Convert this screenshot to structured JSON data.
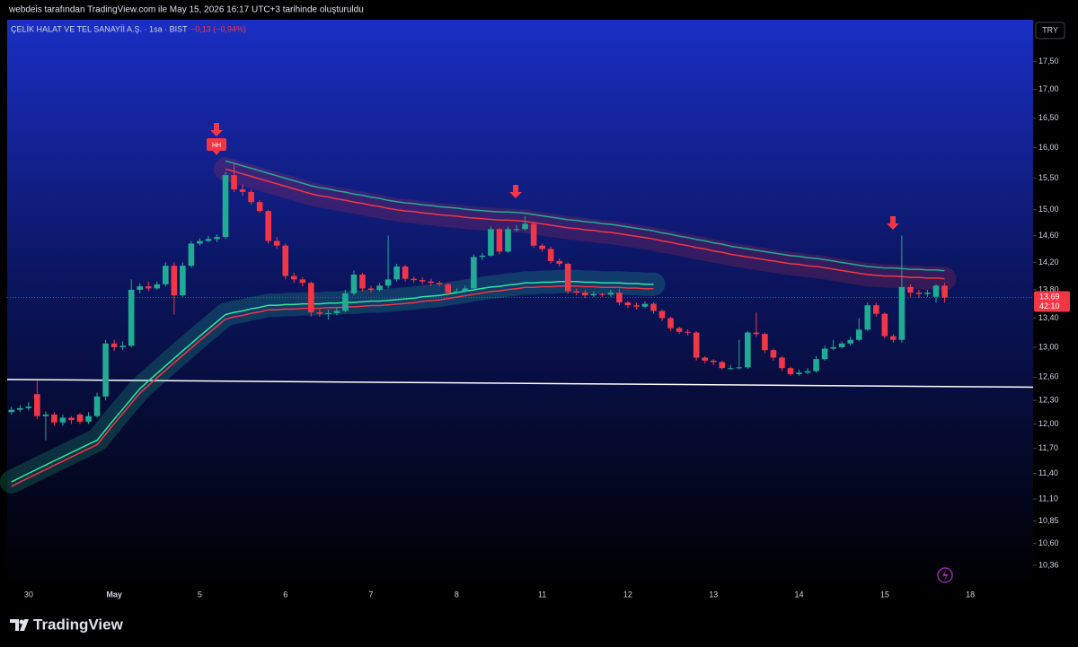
{
  "header": {
    "caption": "webdeis tarafından TradingView.com ile May 15, 2026 16:17 UTC+3 tarihinde oluşturuldu",
    "brand": "TradingView"
  },
  "chart_data": {
    "type": "candlestick",
    "title": "ÇELİK HALAT VE TEL SANAYİİ A.Ş. · 1sa · BIST",
    "subtitle": "−0,13 (−0,94%)",
    "currency": "TRY",
    "log_scale": true,
    "grid": false,
    "up_color": "#22ab94",
    "down_color": "#f23645",
    "ylim": [
      10.12,
      18.28
    ],
    "yticks": [
      {
        "value": 17.5,
        "label": "17,50"
      },
      {
        "value": 17,
        "label": "17,00"
      },
      {
        "value": 16.5,
        "label": "16,50"
      },
      {
        "value": 16,
        "label": "16,00"
      },
      {
        "value": 15.5,
        "label": "15,50"
      },
      {
        "value": 15,
        "label": "15,00"
      },
      {
        "value": 14.6,
        "label": "14,60"
      },
      {
        "value": 14.2,
        "label": "14,20"
      },
      {
        "value": 13.8,
        "label": "13,80"
      },
      {
        "value": 13.4,
        "label": "13,40"
      },
      {
        "value": 13,
        "label": "13,00"
      },
      {
        "value": 12.6,
        "label": "12,60"
      },
      {
        "value": 12.3,
        "label": "12,30"
      },
      {
        "value": 12,
        "label": "12,00"
      },
      {
        "value": 11.7,
        "label": "11,70"
      },
      {
        "value": 11.4,
        "label": "11,40"
      },
      {
        "value": 11.1,
        "label": "11,10"
      },
      {
        "value": 10.85,
        "label": "10,85"
      },
      {
        "value": 10.6,
        "label": "10,60"
      },
      {
        "value": 10.36,
        "label": "10,36"
      }
    ],
    "categories": [
      null,
      null,
      "30",
      null,
      null,
      null,
      null,
      null,
      null,
      null,
      null,
      null,
      "May",
      null,
      null,
      null,
      null,
      null,
      null,
      null,
      null,
      null,
      "5",
      null,
      null,
      null,
      null,
      null,
      null,
      null,
      null,
      null,
      "6",
      null,
      null,
      null,
      null,
      null,
      null,
      null,
      null,
      null,
      "7",
      null,
      null,
      null,
      null,
      null,
      null,
      null,
      null,
      null,
      "8",
      null,
      null,
      null,
      null,
      null,
      null,
      null,
      null,
      null,
      "11",
      null,
      null,
      null,
      null,
      null,
      null,
      null,
      null,
      null,
      "12",
      null,
      null,
      null,
      null,
      null,
      null,
      null,
      null,
      null,
      "13",
      null,
      null,
      null,
      null,
      null,
      null,
      null,
      null,
      null,
      "14",
      null,
      null,
      null,
      null,
      null,
      null,
      null,
      null,
      null,
      "15",
      null,
      null,
      null,
      null,
      null,
      null,
      null,
      null,
      null,
      "18"
    ],
    "values": [
      [
        12.15,
        12.22,
        12.12,
        12.18
      ],
      [
        12.18,
        12.24,
        12.15,
        12.2
      ],
      [
        12.2,
        12.28,
        12.17,
        12.22
      ],
      [
        12.38,
        12.55,
        12.06,
        12.1
      ],
      [
        12.1,
        12.16,
        11.8,
        12.12
      ],
      [
        12.12,
        12.15,
        11.98,
        12.02
      ],
      [
        12.02,
        12.12,
        11.98,
        12.08
      ],
      [
        12.08,
        12.1,
        12.0,
        12.05
      ],
      [
        12.12,
        12.14,
        12.0,
        12.03
      ],
      [
        12.03,
        12.15,
        12.0,
        12.1
      ],
      [
        12.1,
        12.4,
        12.08,
        12.35
      ],
      [
        12.35,
        13.1,
        12.3,
        13.05
      ],
      [
        13.05,
        13.1,
        12.95,
        13.0
      ],
      [
        13.0,
        13.08,
        12.96,
        13.02
      ],
      [
        13.02,
        13.95,
        13.0,
        13.8
      ],
      [
        13.8,
        13.9,
        13.75,
        13.85
      ],
      [
        13.85,
        13.92,
        13.78,
        13.82
      ],
      [
        13.82,
        13.92,
        13.8,
        13.88
      ],
      [
        13.88,
        14.2,
        13.85,
        14.15
      ],
      [
        14.15,
        14.2,
        13.45,
        13.72
      ],
      [
        13.72,
        14.2,
        13.7,
        14.15
      ],
      [
        14.15,
        14.52,
        14.12,
        14.48
      ],
      [
        14.48,
        14.56,
        14.45,
        14.52
      ],
      [
        14.52,
        14.6,
        14.5,
        14.55
      ],
      [
        14.55,
        14.62,
        14.5,
        14.58
      ],
      [
        14.58,
        15.6,
        14.55,
        15.55
      ],
      [
        15.55,
        15.75,
        15.28,
        15.32
      ],
      [
        15.32,
        15.4,
        15.22,
        15.28
      ],
      [
        15.28,
        15.32,
        15.08,
        15.12
      ],
      [
        15.12,
        15.15,
        14.95,
        14.98
      ],
      [
        14.98,
        15.0,
        14.48,
        14.52
      ],
      [
        14.52,
        14.58,
        14.4,
        14.45
      ],
      [
        14.45,
        14.48,
        13.95,
        14.0
      ],
      [
        14.0,
        14.05,
        13.9,
        13.95
      ],
      [
        13.95,
        13.98,
        13.85,
        13.9
      ],
      [
        13.9,
        13.92,
        13.42,
        13.48
      ],
      [
        13.48,
        13.52,
        13.42,
        13.46
      ],
      [
        13.46,
        13.52,
        13.38,
        13.47
      ],
      [
        13.47,
        13.55,
        13.44,
        13.5
      ],
      [
        13.5,
        13.8,
        13.48,
        13.75
      ],
      [
        13.75,
        14.08,
        13.72,
        14.02
      ],
      [
        14.02,
        14.05,
        13.78,
        13.82
      ],
      [
        13.82,
        13.86,
        13.76,
        13.8
      ],
      [
        13.8,
        13.9,
        13.78,
        13.86
      ],
      [
        13.86,
        14.6,
        13.82,
        13.95
      ],
      [
        13.95,
        14.18,
        13.92,
        14.14
      ],
      [
        14.14,
        14.16,
        13.92,
        13.96
      ],
      [
        13.96,
        13.99,
        13.9,
        13.94
      ],
      [
        13.94,
        13.98,
        13.88,
        13.92
      ],
      [
        13.92,
        13.96,
        13.86,
        13.9
      ],
      [
        13.9,
        13.93,
        13.85,
        13.88
      ],
      [
        13.88,
        13.9,
        13.72,
        13.76
      ],
      [
        13.76,
        13.82,
        13.74,
        13.78
      ],
      [
        13.78,
        13.86,
        13.76,
        13.82
      ],
      [
        13.82,
        14.32,
        13.8,
        14.28
      ],
      [
        14.28,
        14.34,
        14.24,
        14.3
      ],
      [
        14.3,
        14.74,
        14.28,
        14.7
      ],
      [
        14.7,
        14.72,
        14.32,
        14.36
      ],
      [
        14.36,
        14.74,
        14.34,
        14.7
      ],
      [
        14.7,
        14.76,
        14.66,
        14.7
      ],
      [
        14.7,
        14.9,
        14.68,
        14.78
      ],
      [
        14.78,
        14.8,
        14.42,
        14.45
      ],
      [
        14.45,
        14.48,
        14.36,
        14.4
      ],
      [
        14.4,
        14.44,
        14.18,
        14.22
      ],
      [
        14.22,
        14.26,
        14.14,
        14.18
      ],
      [
        14.18,
        14.2,
        13.74,
        13.78
      ],
      [
        13.78,
        13.82,
        13.72,
        13.76
      ],
      [
        13.76,
        13.8,
        13.68,
        13.72
      ],
      [
        13.72,
        13.78,
        13.7,
        13.74
      ],
      [
        13.74,
        13.76,
        13.7,
        13.73
      ],
      [
        13.73,
        13.8,
        13.7,
        13.76
      ],
      [
        13.76,
        13.82,
        13.58,
        13.62
      ],
      [
        13.62,
        13.64,
        13.54,
        13.58
      ],
      [
        13.58,
        13.62,
        13.52,
        13.56
      ],
      [
        13.56,
        13.64,
        13.54,
        13.6
      ],
      [
        13.6,
        13.62,
        13.46,
        13.5
      ],
      [
        13.5,
        13.52,
        13.36,
        13.4
      ],
      [
        13.4,
        13.42,
        13.22,
        13.26
      ],
      [
        13.26,
        13.28,
        13.18,
        13.21
      ],
      [
        13.21,
        13.24,
        13.16,
        13.2
      ],
      [
        13.2,
        13.22,
        12.82,
        12.86
      ],
      [
        12.86,
        12.88,
        12.78,
        12.82
      ],
      [
        12.82,
        12.84,
        12.76,
        12.8
      ],
      [
        12.8,
        12.82,
        12.7,
        12.72
      ],
      [
        12.72,
        12.76,
        12.7,
        12.72
      ],
      [
        12.72,
        13.1,
        12.7,
        12.73
      ],
      [
        12.73,
        13.22,
        12.71,
        13.2
      ],
      [
        13.2,
        13.48,
        13.14,
        13.18
      ],
      [
        13.18,
        13.2,
        12.92,
        12.96
      ],
      [
        12.96,
        12.98,
        12.82,
        12.86
      ],
      [
        12.86,
        12.88,
        12.68,
        12.72
      ],
      [
        12.72,
        12.74,
        12.62,
        12.64
      ],
      [
        12.64,
        12.7,
        12.62,
        12.66
      ],
      [
        12.66,
        12.72,
        12.64,
        12.68
      ],
      [
        12.68,
        12.88,
        12.66,
        12.84
      ],
      [
        12.84,
        13.02,
        12.82,
        12.98
      ],
      [
        12.98,
        13.1,
        12.96,
        13.0
      ],
      [
        13.0,
        13.08,
        12.98,
        13.05
      ],
      [
        13.05,
        13.14,
        13.02,
        13.1
      ],
      [
        13.1,
        13.4,
        13.08,
        13.24
      ],
      [
        13.24,
        13.62,
        13.22,
        13.58
      ],
      [
        13.58,
        13.62,
        13.42,
        13.46
      ],
      [
        13.46,
        13.48,
        13.12,
        13.15
      ],
      [
        13.15,
        13.18,
        13.06,
        13.1
      ],
      [
        13.1,
        14.6,
        13.06,
        13.84
      ],
      [
        13.84,
        13.88,
        13.7,
        13.76
      ],
      [
        13.76,
        13.8,
        13.68,
        13.74
      ],
      [
        13.74,
        13.8,
        13.7,
        13.76
      ],
      [
        13.7,
        13.88,
        13.62,
        13.86
      ],
      [
        13.86,
        13.9,
        13.62,
        13.69
      ],
      null,
      null,
      null
    ],
    "overlays": [
      {
        "color": "#f23645",
        "values": [
          null,
          null,
          null,
          null,
          null,
          null,
          null,
          null,
          null,
          null,
          null,
          null,
          null,
          null,
          null,
          null,
          null,
          null,
          null,
          null,
          null,
          null,
          null,
          null,
          null,
          15.65,
          15.61,
          15.57,
          15.53,
          15.49,
          15.45,
          15.41,
          15.37,
          15.33,
          15.29,
          15.25,
          15.22,
          15.2,
          15.17,
          15.15,
          15.12,
          15.1,
          15.07,
          15.05,
          15.02,
          15.0,
          14.98,
          14.97,
          14.95,
          14.94,
          14.92,
          14.91,
          14.9,
          14.88,
          14.87,
          14.86,
          14.85,
          14.84,
          14.84,
          14.83,
          14.82,
          14.8,
          14.78,
          14.76,
          14.74,
          14.72,
          14.71,
          14.69,
          14.68,
          14.66,
          14.65,
          14.63,
          14.61,
          14.59,
          14.57,
          14.55,
          14.52,
          14.5,
          14.47,
          14.45,
          14.42,
          14.4,
          14.37,
          14.35,
          14.32,
          14.3,
          14.28,
          14.26,
          14.24,
          14.22,
          14.2,
          14.18,
          14.17,
          14.15,
          14.14,
          14.12,
          14.1,
          14.08,
          14.06,
          14.04,
          14.02,
          14.01,
          14.0,
          14.0,
          13.99,
          13.98,
          13.98,
          13.97,
          13.97,
          13.96,
          null,
          null,
          null
        ]
      },
      {
        "color": "#2ee8a5",
        "values": [
          11.3,
          11.35,
          11.4,
          11.45,
          11.5,
          11.55,
          11.6,
          11.65,
          11.7,
          11.75,
          11.8,
          11.93,
          12.06,
          12.19,
          12.32,
          12.45,
          12.55,
          12.65,
          12.75,
          12.85,
          12.95,
          13.05,
          13.15,
          13.25,
          13.35,
          13.45,
          13.48,
          13.5,
          13.53,
          13.55,
          13.58,
          13.58,
          13.59,
          13.59,
          13.6,
          13.6,
          13.6,
          13.61,
          13.61,
          13.62,
          13.62,
          13.63,
          13.64,
          13.64,
          13.65,
          13.66,
          13.67,
          13.68,
          13.7,
          13.71,
          13.72,
          13.74,
          13.76,
          13.78,
          13.8,
          13.82,
          13.84,
          13.85,
          13.87,
          13.88,
          13.9,
          13.9,
          13.91,
          13.91,
          13.92,
          13.92,
          13.92,
          13.91,
          13.91,
          13.9,
          13.9,
          13.9,
          13.89,
          13.89,
          13.88,
          13.88,
          null,
          null,
          null,
          null,
          null,
          null,
          null,
          null,
          null,
          null,
          null,
          null,
          null,
          null,
          null,
          null,
          null,
          null,
          null,
          null,
          null,
          null,
          null,
          null,
          null,
          null,
          null,
          null,
          null,
          null,
          null,
          null,
          null,
          null,
          null,
          null,
          null
        ]
      }
    ],
    "trendline": {
      "color": "#ffffff",
      "values": [
        12.57,
        12.47
      ]
    },
    "signal_label": "HH",
    "last_price": {
      "value": 13.69,
      "label": "13,69"
    },
    "countdown": "42:10"
  }
}
